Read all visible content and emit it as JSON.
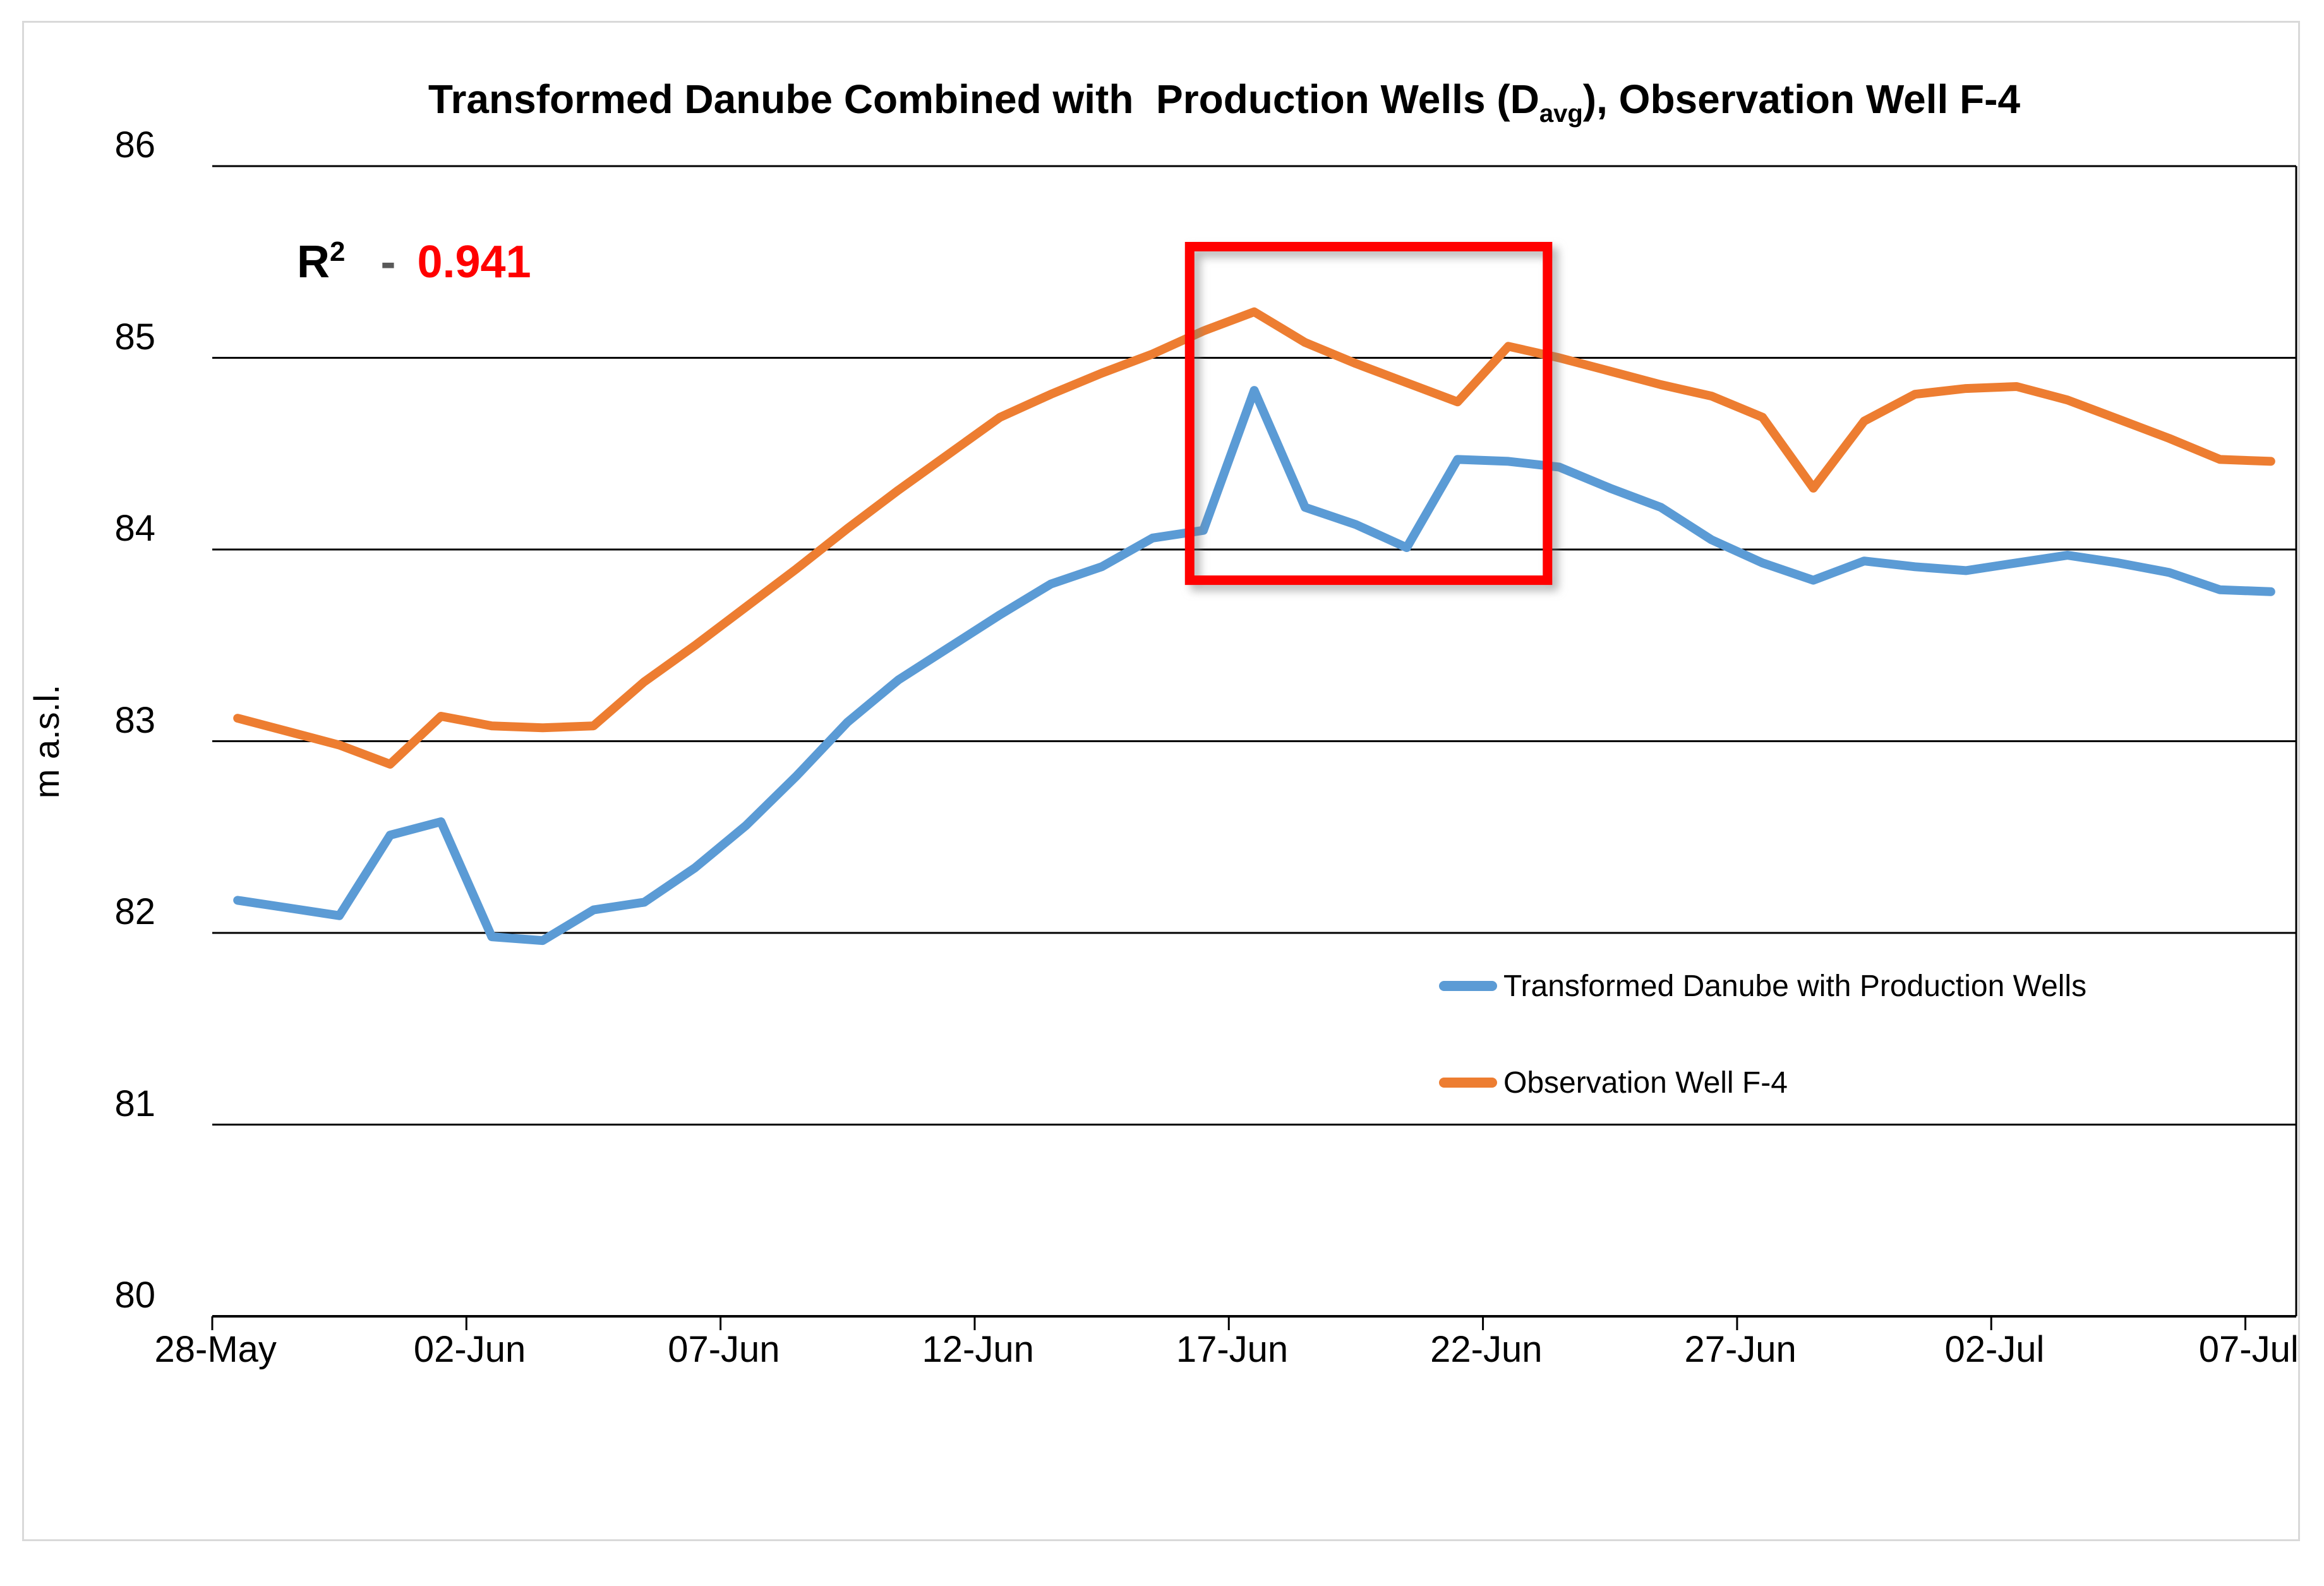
{
  "chart": {
    "title": {
      "prefix": "Transformed Danube Combined with  Production Wells (D",
      "subscript": "avg",
      "suffix": "), Observation Well F-4"
    },
    "annotation": {
      "label": "R",
      "superscript": "2",
      "dash": "-",
      "value": "0.941",
      "value_color": "#ff0000"
    },
    "y_axis_title": "m a.s.l.",
    "legend": [
      {
        "label": "Transformed Danube with Production Wells",
        "color": "#5b9bd5"
      },
      {
        "label": "Observation Well F-4",
        "color": "#ed7d31"
      }
    ],
    "colors": {
      "gridline": "#000000",
      "chart_border": "#d9d9d9",
      "highlight": "#ff0000"
    }
  },
  "chart_data": {
    "type": "line",
    "x": [
      "28-May",
      "29-May",
      "30-May",
      "31-May",
      "01-Jun",
      "02-Jun",
      "03-Jun",
      "04-Jun",
      "05-Jun",
      "06-Jun",
      "07-Jun",
      "08-Jun",
      "09-Jun",
      "10-Jun",
      "11-Jun",
      "12-Jun",
      "13-Jun",
      "14-Jun",
      "15-Jun",
      "16-Jun",
      "17-Jun",
      "18-Jun",
      "19-Jun",
      "20-Jun",
      "21-Jun",
      "22-Jun",
      "23-Jun",
      "24-Jun",
      "25-Jun",
      "26-Jun",
      "27-Jun",
      "28-Jun",
      "29-Jun",
      "30-Jun",
      "01-Jul",
      "02-Jul",
      "03-Jul",
      "04-Jul",
      "05-Jul",
      "06-Jul",
      "07-Jul"
    ],
    "x_tick_labels": [
      "28-May",
      "02-Jun",
      "07-Jun",
      "12-Jun",
      "17-Jun",
      "22-Jun",
      "27-Jun",
      "02-Jul",
      "07-Jul"
    ],
    "x_tick_interval": 5,
    "y_ticks": [
      86,
      85,
      84,
      83,
      82,
      81,
      80
    ],
    "ylim": [
      80,
      86
    ],
    "grid": "horizontal",
    "legend_position": "inside-right",
    "series": [
      {
        "name": "Transformed Danube with Production Wells",
        "color": "#5b9bd5",
        "values": [
          82.17,
          82.13,
          82.09,
          82.51,
          82.58,
          81.98,
          81.96,
          82.12,
          82.16,
          82.34,
          82.56,
          82.82,
          83.1,
          83.32,
          83.49,
          83.66,
          83.82,
          83.91,
          84.06,
          84.1,
          84.83,
          84.22,
          84.13,
          84.01,
          84.47,
          84.46,
          84.43,
          84.32,
          84.22,
          84.05,
          83.93,
          83.84,
          83.94,
          83.91,
          83.89,
          83.93,
          83.97,
          83.93,
          83.88,
          83.79,
          83.78
        ]
      },
      {
        "name": "Observation Well F-4",
        "color": "#ed7d31",
        "values": [
          83.12,
          83.05,
          82.98,
          82.88,
          83.13,
          83.08,
          83.07,
          83.08,
          83.31,
          83.5,
          83.7,
          83.9,
          84.11,
          84.31,
          84.5,
          84.69,
          84.81,
          84.92,
          85.02,
          85.14,
          85.24,
          85.08,
          84.97,
          84.87,
          84.77,
          85.06,
          85.0,
          84.93,
          84.86,
          84.8,
          84.69,
          84.32,
          84.67,
          84.81,
          84.84,
          84.85,
          84.78,
          84.68,
          84.58,
          84.47,
          84.46
        ]
      }
    ],
    "highlight_box": {
      "x1": 18.73,
      "x2": 25.77,
      "y1": 83.84,
      "y2": 85.58,
      "color": "#ff0000"
    }
  }
}
